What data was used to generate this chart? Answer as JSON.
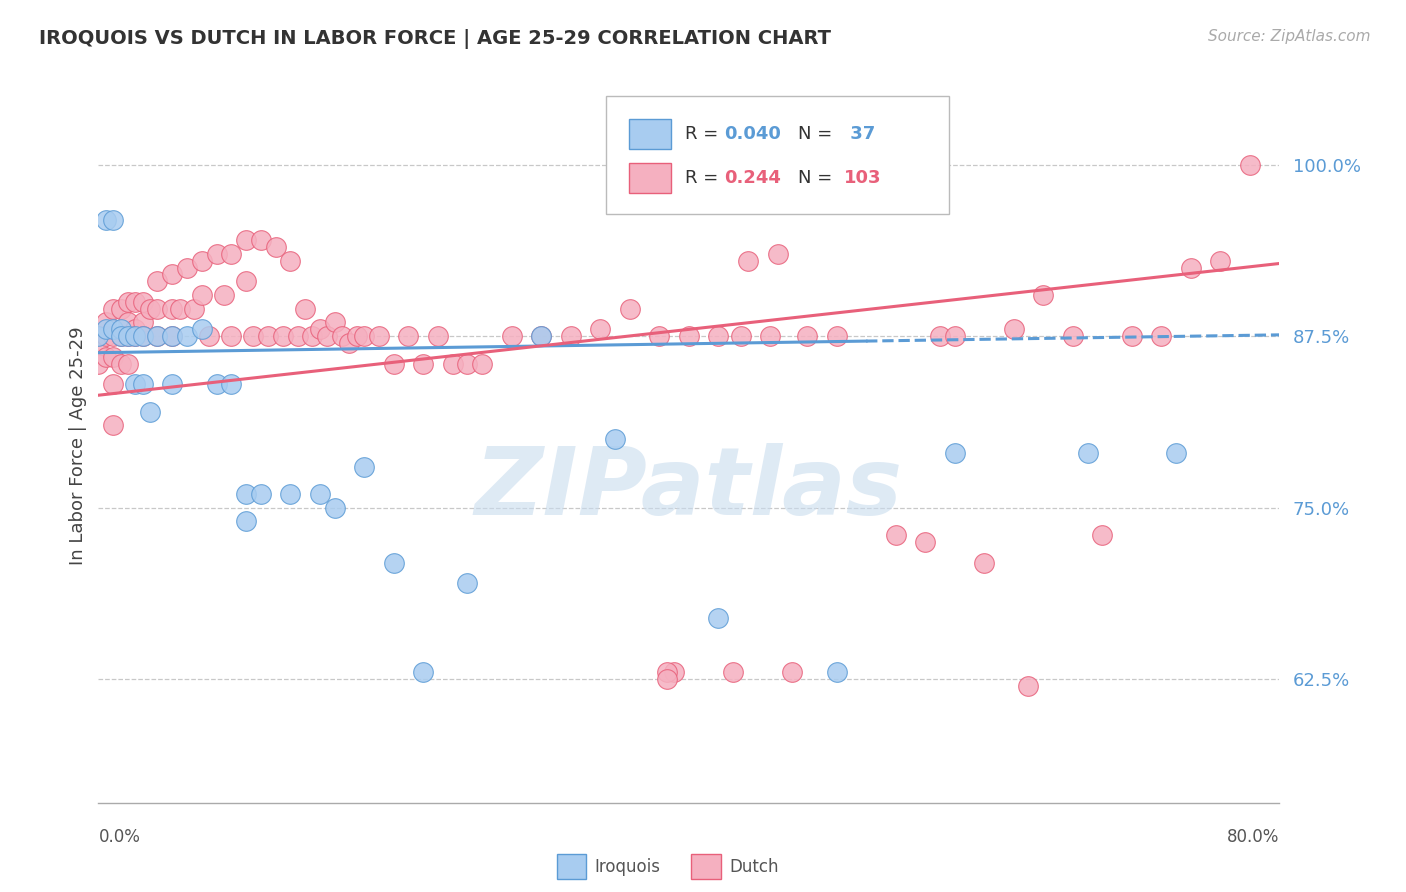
{
  "title": "IROQUOIS VS DUTCH IN LABOR FORCE | AGE 25-29 CORRELATION CHART",
  "source": "Source: ZipAtlas.com",
  "ylabel": "In Labor Force | Age 25-29",
  "ytick_labels": [
    "62.5%",
    "75.0%",
    "87.5%",
    "100.0%"
  ],
  "ytick_values": [
    0.625,
    0.75,
    0.875,
    1.0
  ],
  "xlim": [
    0.0,
    0.8
  ],
  "ylim": [
    0.535,
    1.055
  ],
  "R_iroquois": 0.04,
  "N_iroquois": 37,
  "R_dutch": 0.244,
  "N_dutch": 103,
  "iroquois_fill": "#A8CCF0",
  "iroquois_edge": "#5B9BD5",
  "dutch_fill": "#F5B0C0",
  "dutch_edge": "#E8607A",
  "iroquois_x": [
    0.0,
    0.005,
    0.005,
    0.01,
    0.01,
    0.015,
    0.015,
    0.02,
    0.025,
    0.025,
    0.03,
    0.03,
    0.035,
    0.04,
    0.05,
    0.05,
    0.06,
    0.07,
    0.08,
    0.09,
    0.1,
    0.1,
    0.11,
    0.13,
    0.15,
    0.16,
    0.18,
    0.2,
    0.22,
    0.25,
    0.3,
    0.35,
    0.42,
    0.5,
    0.58,
    0.67,
    0.73
  ],
  "iroquois_y": [
    0.875,
    0.96,
    0.88,
    0.96,
    0.88,
    0.88,
    0.875,
    0.875,
    0.875,
    0.84,
    0.875,
    0.84,
    0.82,
    0.875,
    0.875,
    0.84,
    0.875,
    0.88,
    0.84,
    0.84,
    0.76,
    0.74,
    0.76,
    0.76,
    0.76,
    0.75,
    0.78,
    0.71,
    0.63,
    0.695,
    0.875,
    0.8,
    0.67,
    0.63,
    0.79,
    0.79,
    0.79
  ],
  "dutch_x": [
    0.0,
    0.0,
    0.0,
    0.005,
    0.005,
    0.005,
    0.01,
    0.01,
    0.01,
    0.01,
    0.01,
    0.015,
    0.015,
    0.015,
    0.02,
    0.02,
    0.02,
    0.02,
    0.025,
    0.025,
    0.025,
    0.03,
    0.03,
    0.03,
    0.035,
    0.04,
    0.04,
    0.04,
    0.05,
    0.05,
    0.05,
    0.055,
    0.06,
    0.065,
    0.07,
    0.07,
    0.075,
    0.08,
    0.085,
    0.09,
    0.09,
    0.1,
    0.1,
    0.105,
    0.11,
    0.115,
    0.12,
    0.125,
    0.13,
    0.135,
    0.14,
    0.145,
    0.15,
    0.155,
    0.16,
    0.165,
    0.17,
    0.175,
    0.18,
    0.19,
    0.2,
    0.21,
    0.22,
    0.23,
    0.24,
    0.25,
    0.26,
    0.28,
    0.3,
    0.32,
    0.34,
    0.36,
    0.38,
    0.39,
    0.4,
    0.42,
    0.44,
    0.46,
    0.47,
    0.5,
    0.52,
    0.54,
    0.56,
    0.57,
    0.58,
    0.6,
    0.62,
    0.64,
    0.66,
    0.68,
    0.7,
    0.72,
    0.74,
    0.76,
    0.78,
    0.385,
    0.43,
    0.51,
    0.435,
    0.455,
    0.48,
    0.385,
    0.63
  ],
  "dutch_y": [
    0.875,
    0.87,
    0.855,
    0.885,
    0.875,
    0.86,
    0.895,
    0.875,
    0.86,
    0.84,
    0.81,
    0.895,
    0.875,
    0.855,
    0.9,
    0.885,
    0.875,
    0.855,
    0.9,
    0.88,
    0.875,
    0.9,
    0.885,
    0.875,
    0.895,
    0.915,
    0.895,
    0.875,
    0.92,
    0.895,
    0.875,
    0.895,
    0.925,
    0.895,
    0.93,
    0.905,
    0.875,
    0.935,
    0.905,
    0.935,
    0.875,
    0.945,
    0.915,
    0.875,
    0.945,
    0.875,
    0.94,
    0.875,
    0.93,
    0.875,
    0.895,
    0.875,
    0.88,
    0.875,
    0.885,
    0.875,
    0.87,
    0.875,
    0.875,
    0.875,
    0.855,
    0.875,
    0.855,
    0.875,
    0.855,
    0.855,
    0.855,
    0.875,
    0.875,
    0.875,
    0.88,
    0.895,
    0.875,
    0.63,
    0.875,
    0.875,
    0.93,
    0.935,
    0.63,
    0.875,
    1.0,
    0.73,
    0.725,
    0.875,
    0.875,
    0.71,
    0.88,
    0.905,
    0.875,
    0.73,
    0.875,
    0.875,
    0.925,
    0.93,
    1.0,
    0.63,
    0.63,
    1.0,
    0.875,
    0.875,
    0.875,
    0.625,
    0.62
  ]
}
